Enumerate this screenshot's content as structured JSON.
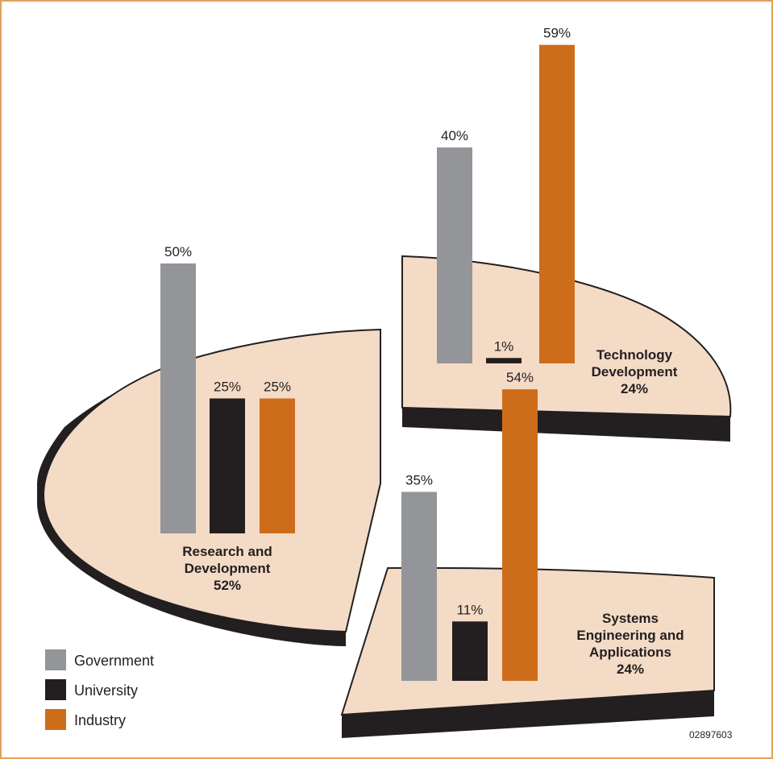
{
  "chart_data": {
    "type": "bar",
    "description_note": "",
    "series_names": [
      "Government",
      "University",
      "Industry"
    ],
    "colors": {
      "Government": "#939598",
      "University": "#231f20",
      "Industry": "#cd6d1b",
      "slice_top": "#f4dbc6",
      "slice_side": "#231f20",
      "border": "#e0a25a"
    },
    "segments": [
      {
        "label_lines": [
          "Research and",
          "Development",
          "52%"
        ],
        "share": 52,
        "values": {
          "Government": 50,
          "University": 25,
          "Industry": 25
        },
        "value_labels": {
          "Government": "50%",
          "University": "25%",
          "Industry": "25%"
        }
      },
      {
        "label_lines": [
          "Technology",
          "Development",
          "24%"
        ],
        "share": 24,
        "values": {
          "Government": 40,
          "University": 1,
          "Industry": 59
        },
        "value_labels": {
          "Government": "40%",
          "University": "1%",
          "Industry": "59%"
        }
      },
      {
        "label_lines": [
          "Systems",
          "Engineering and",
          "Applications",
          "24%"
        ],
        "share": 24,
        "values": {
          "Government": 35,
          "University": 11,
          "Industry": 54
        },
        "value_labels": {
          "Government": "35%",
          "University": "11%",
          "Industry": "54%"
        }
      }
    ],
    "legend": {
      "placement": "bottom-left",
      "items": [
        "Government",
        "University",
        "Industry"
      ]
    }
  },
  "figure_id": "02897603"
}
